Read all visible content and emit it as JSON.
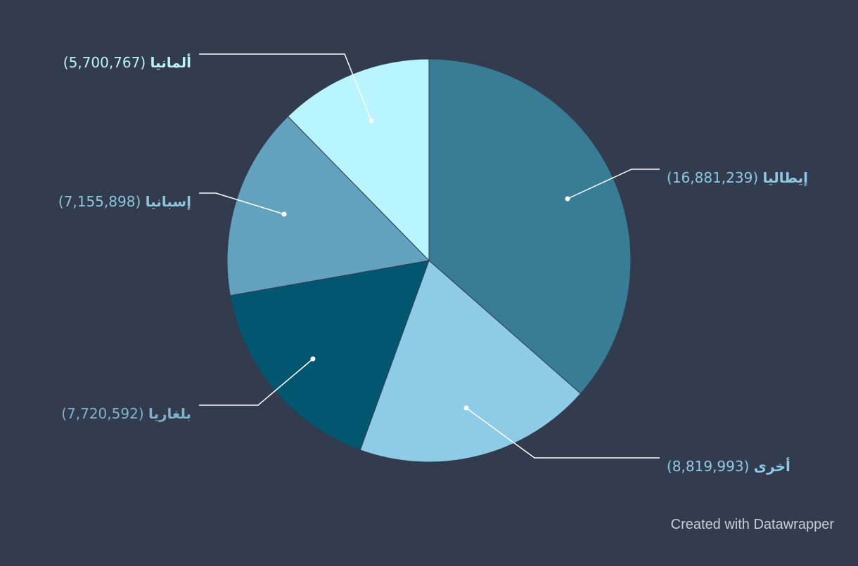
{
  "chart_data": {
    "type": "pie",
    "slices": [
      {
        "name": "إيطاليا",
        "value": 16881239,
        "label_value": "16,881,239",
        "color": "#387c96",
        "label_color": "#8ec9e4"
      },
      {
        "name": "أخرى",
        "value": 8819993,
        "label_value": "8,819,993",
        "color": "#8ecbe6",
        "label_color": "#8ecbe6"
      },
      {
        "name": "بلغاريا",
        "value": 7720592,
        "label_value": "7,720,592",
        "color": "#03566f",
        "label_color": "#7fb3cc"
      },
      {
        "name": "إسبانيا",
        "value": 7155898,
        "label_value": "7,155,898",
        "color": "#62a2bf",
        "label_color": "#8ec4dc"
      },
      {
        "name": "ألمانيا",
        "value": 5700767,
        "label_value": "5,700,767",
        "color": "#b8f5ff",
        "label_color": "#b8f5ff"
      }
    ],
    "start_angle_deg": 0,
    "direction": "clockwise"
  },
  "footer": {
    "credit": "Created with Datawrapper"
  }
}
